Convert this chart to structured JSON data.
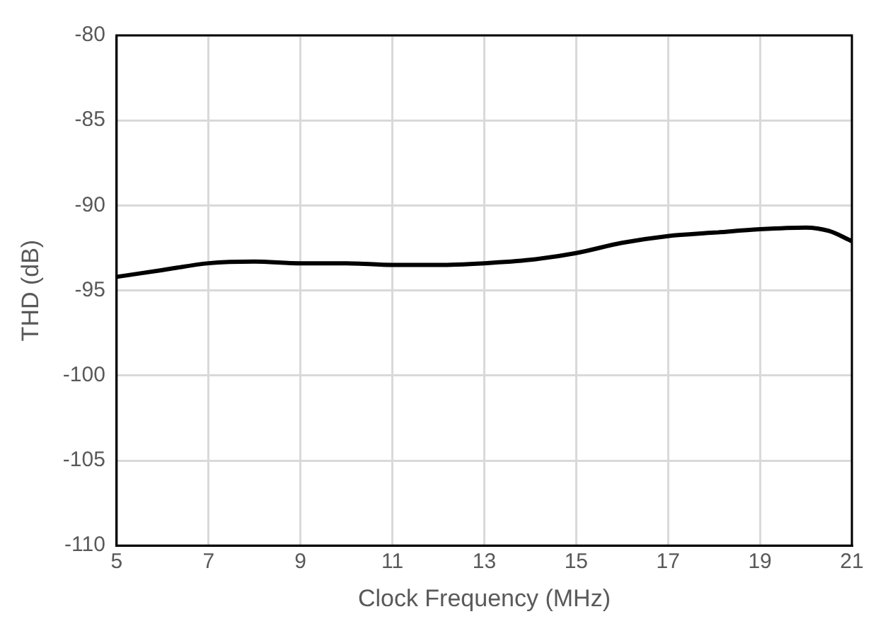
{
  "chart_data": {
    "type": "line",
    "xlabel": "Clock Frequency (MHz)",
    "ylabel": "THD (dB)",
    "x": [
      5,
      6,
      7,
      8,
      9,
      10,
      11,
      12,
      13,
      14,
      15,
      16,
      17,
      18,
      19,
      20,
      20.5,
      21
    ],
    "series": [
      {
        "color": "#000000",
        "values": [
          -94.2,
          -93.8,
          -93.4,
          -93.3,
          -93.4,
          -93.4,
          -93.5,
          -93.5,
          -93.4,
          -93.2,
          -92.8,
          -92.2,
          -91.8,
          -91.6,
          -91.4,
          -91.3,
          -91.5,
          -92.1
        ]
      }
    ],
    "xlim": [
      5,
      21
    ],
    "xticks": [
      5,
      7,
      9,
      11,
      13,
      15,
      17,
      19,
      21
    ],
    "ylim": [
      -110,
      -80
    ],
    "yticks": [
      -110,
      -105,
      -100,
      -95,
      -90,
      -85,
      -80
    ],
    "grid": true,
    "marker": "none",
    "line_style": "solid"
  }
}
